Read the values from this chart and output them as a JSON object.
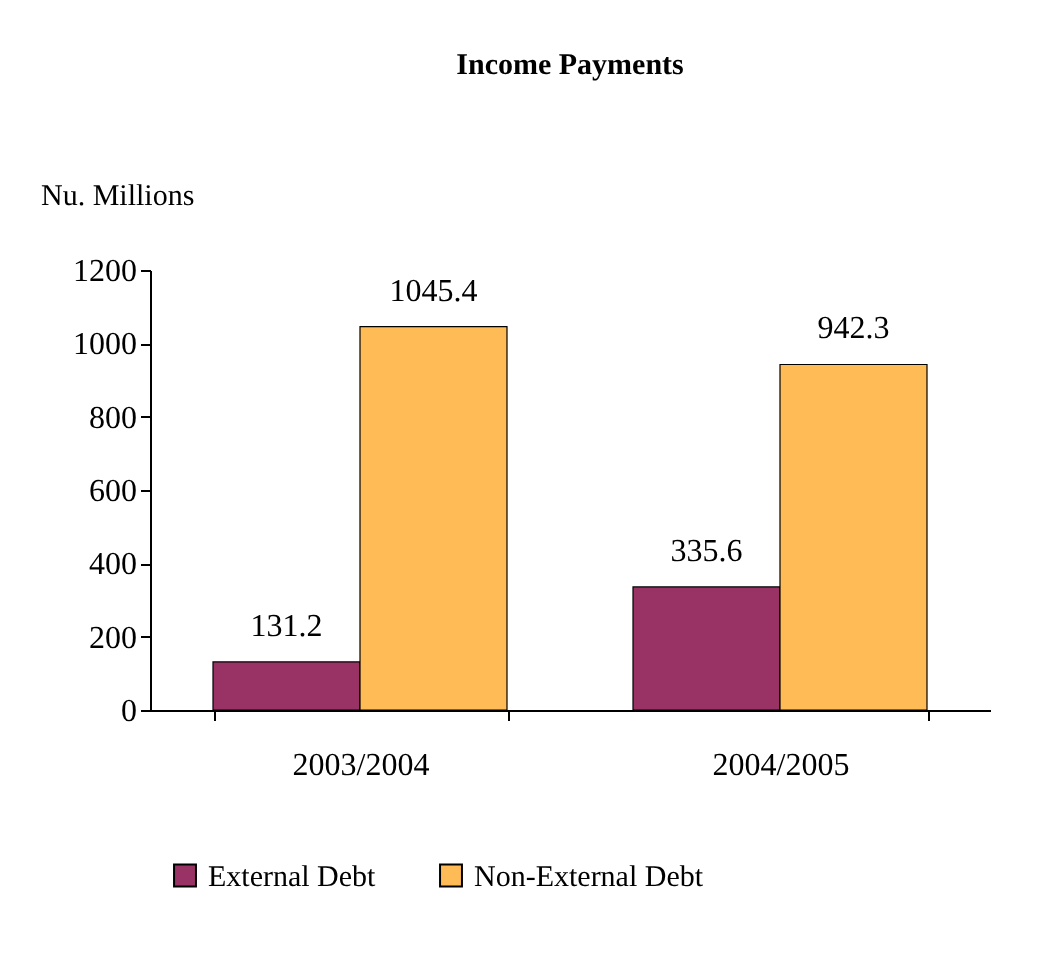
{
  "chart_data": {
    "type": "bar",
    "title": "Income Payments",
    "ylabel": "Nu. Millions",
    "categories": [
      "2003/2004",
      "2004/2005"
    ],
    "series": [
      {
        "name": "External Debt",
        "color": "#993366",
        "values": [
          131.2,
          335.6
        ]
      },
      {
        "name": "Non-External Debt",
        "color": "#ffbb55",
        "values": [
          1045.4,
          942.3
        ]
      }
    ],
    "ylim": [
      0,
      1200
    ],
    "yticks": [
      0,
      200,
      400,
      600,
      800,
      1000,
      1200
    ],
    "grid": false,
    "legend": "bottom",
    "data_labels": true
  }
}
